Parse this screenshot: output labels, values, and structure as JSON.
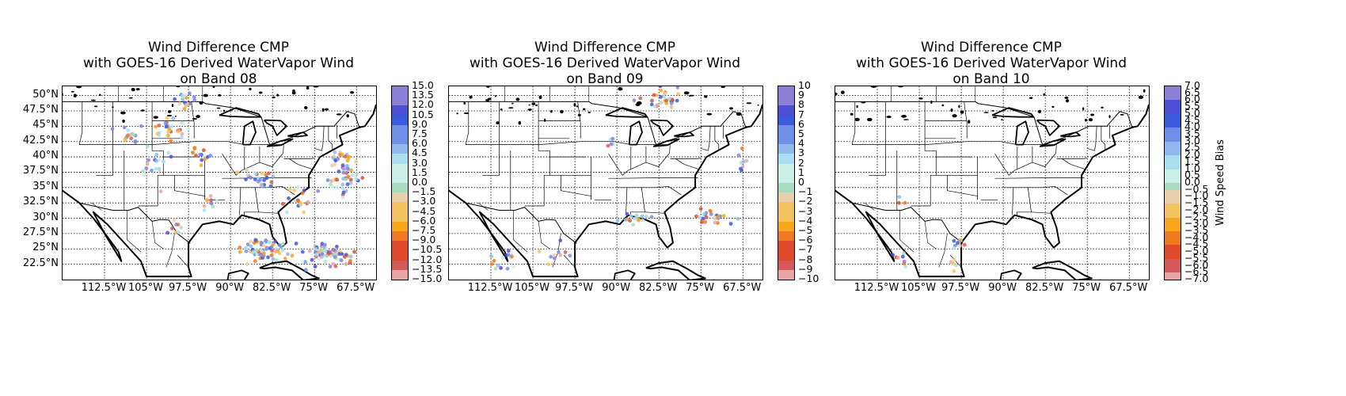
{
  "panels": [
    {
      "title_lines": [
        "Wind Difference CMP",
        "with GOES-16 Derived WaterVapor Wind",
        "on Band 08"
      ],
      "lat_labels": [
        "50°N",
        "47.5°N",
        "45°N",
        "42.5°N",
        "40°N",
        "37.5°N",
        "35°N",
        "32.5°N",
        "30°N",
        "27.5°N",
        "25°N",
        "22.5°N"
      ],
      "lon_labels": [
        "112.5°W",
        "105°W",
        "97.5°W",
        "90°W",
        "82.5°W",
        "75°W",
        "67.5°W"
      ],
      "colorbar": {
        "min": -15.0,
        "max": 15.0,
        "ticks": [
          "15.0",
          "13.5",
          "12.0",
          "10.5",
          "9.0",
          "7.5",
          "6.0",
          "4.5",
          "3.0",
          "1.5",
          "0.0",
          "−1.5",
          "−3.0",
          "−4.5",
          "−6.0",
          "−7.5",
          "−9.0",
          "−10.5",
          "−12.0",
          "−13.5",
          "−15.0"
        ],
        "label": ""
      }
    },
    {
      "title_lines": [
        "Wind Difference CMP",
        "with GOES-16 Derived WaterVapor Wind",
        "on Band 09"
      ],
      "lat_labels": [],
      "lon_labels": [
        "112.5°W",
        "105°W",
        "97.5°W",
        "90°W",
        "82.5°W",
        "75°W",
        "67.5°W"
      ],
      "colorbar": {
        "min": -10,
        "max": 10,
        "ticks": [
          "10",
          "9",
          "8",
          "7",
          "6",
          "5",
          "4",
          "3",
          "2",
          "1",
          "0",
          "−1",
          "−2",
          "−3",
          "−4",
          "−5",
          "−6",
          "−7",
          "−8",
          "−9",
          "−10"
        ],
        "label": ""
      }
    },
    {
      "title_lines": [
        "Wind Difference CMP",
        "with GOES-16 Derived WaterVapor Wind",
        "on Band 10"
      ],
      "lat_labels": [],
      "lon_labels": [
        "112.5°W",
        "105°W",
        "97.5°W",
        "90°W",
        "82.5°W",
        "75°W",
        "67.5°W"
      ],
      "colorbar": {
        "min": -7.0,
        "max": 7.0,
        "ticks": [
          "7.0",
          "6.5",
          "6.0",
          "5.5",
          "5.0",
          "4.5",
          "4.0",
          "3.5",
          "3.0",
          "2.5",
          "2.0",
          "1.5",
          "1.0",
          "0.5",
          "0.0",
          "−0.5",
          "−1.0",
          "−1.5",
          "−2.0",
          "−2.5",
          "−3.0",
          "−3.5",
          "−4.0",
          "−4.5",
          "−5.0",
          "−5.5",
          "−6.0",
          "−6.5",
          "−7.0"
        ],
        "label": "Wind Speed Bias"
      }
    }
  ],
  "map_extent": {
    "lon_min": -120,
    "lon_max": -64,
    "lat_min": 20,
    "lat_max": 51.5
  },
  "colormap": [
    "#8b7fd9",
    "#4c4fd6",
    "#3a5bdb",
    "#6e8fe8",
    "#8fb8ee",
    "#a9dff0",
    "#c9efe6",
    "#a8dcc0",
    "#e9cfa9",
    "#f2c35e",
    "#f7a51a",
    "#ef7a22",
    "#e24a2e",
    "#d65a5a",
    "#e8a6a6"
  ],
  "point_clusters": [
    [
      {
        "lon": -101,
        "lat": 44.5,
        "n": 26,
        "spread": [
          2.5,
          1.5
        ]
      },
      {
        "lon": -108,
        "lat": 43.5,
        "n": 14,
        "spread": [
          1.8,
          1.2
        ]
      },
      {
        "lon": -98,
        "lat": 48.5,
        "n": 18,
        "spread": [
          1.2,
          2.0
        ]
      },
      {
        "lon": -104,
        "lat": 39,
        "n": 18,
        "spread": [
          2.0,
          2.2
        ]
      },
      {
        "lon": -95,
        "lat": 40,
        "n": 14,
        "spread": [
          2.0,
          1.6
        ]
      },
      {
        "lon": -94,
        "lat": 32,
        "n": 10,
        "spread": [
          1.5,
          1.5
        ]
      },
      {
        "lon": -85,
        "lat": 36.5,
        "n": 24,
        "spread": [
          3.0,
          1.5
        ]
      },
      {
        "lon": -78,
        "lat": 33,
        "n": 18,
        "spread": [
          2.5,
          2.0
        ]
      },
      {
        "lon": -70,
        "lat": 37.5,
        "n": 60,
        "spread": [
          2.0,
          3.0
        ]
      },
      {
        "lon": -84,
        "lat": 25,
        "n": 70,
        "spread": [
          3.5,
          1.5
        ]
      },
      {
        "lon": -73,
        "lat": 24,
        "n": 70,
        "spread": [
          3.5,
          1.8
        ]
      },
      {
        "lon": -100,
        "lat": 28.5,
        "n": 8,
        "spread": [
          1.2,
          1.5
        ]
      }
    ],
    [
      {
        "lon": -82,
        "lat": 49.5,
        "n": 30,
        "spread": [
          3.5,
          1.5
        ]
      },
      {
        "lon": -73,
        "lat": 30.5,
        "n": 28,
        "spread": [
          3.5,
          1.2
        ]
      },
      {
        "lon": -87,
        "lat": 30,
        "n": 16,
        "spread": [
          3.0,
          0.8
        ]
      },
      {
        "lon": -110,
        "lat": 23,
        "n": 14,
        "spread": [
          2.5,
          1.5
        ]
      },
      {
        "lon": -101,
        "lat": 24,
        "n": 10,
        "spread": [
          2.0,
          1.5
        ]
      },
      {
        "lon": -67.5,
        "lat": 39,
        "n": 8,
        "spread": [
          0.8,
          1.5
        ]
      },
      {
        "lon": -91,
        "lat": 42.5,
        "n": 5,
        "spread": [
          0.6,
          0.6
        ]
      }
    ],
    [
      {
        "lon": -108,
        "lat": 23,
        "n": 8,
        "spread": [
          1.5,
          1.0
        ]
      },
      {
        "lon": -98,
        "lat": 25.5,
        "n": 9,
        "spread": [
          1.0,
          1.5
        ]
      },
      {
        "lon": -99,
        "lat": 22.5,
        "n": 5,
        "spread": [
          1.0,
          1.0
        ]
      },
      {
        "lon": -108,
        "lat": 32.5,
        "n": 3,
        "spread": [
          0.8,
          0.8
        ]
      }
    ]
  ]
}
